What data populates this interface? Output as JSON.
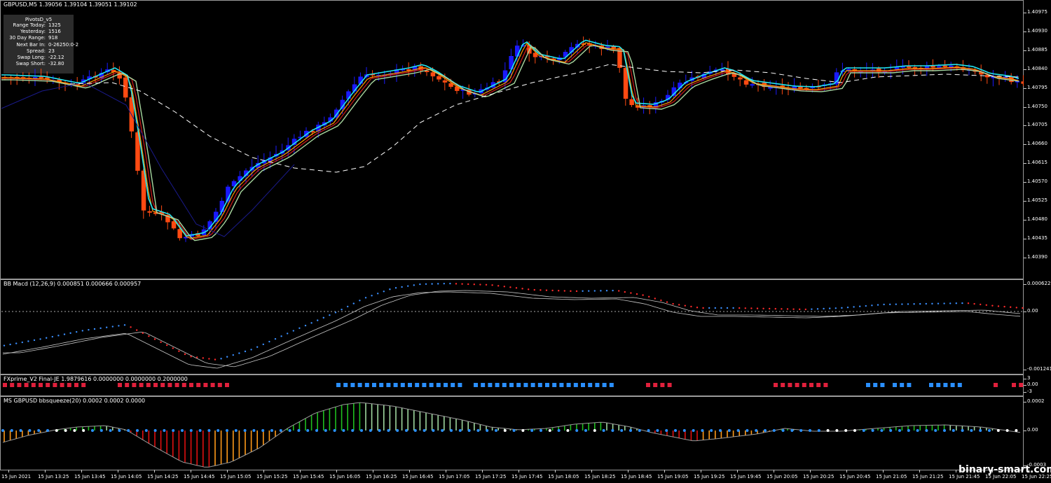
{
  "main_chart": {
    "title": "GBPUSD,M5  1.39056 1.39104 1.39051 1.39102",
    "price_ticks": [
      "1.40975",
      "1.40930",
      "1.40885",
      "1.40840",
      "1.40795",
      "1.40750",
      "1.40705",
      "1.40660",
      "1.40615",
      "1.40570",
      "1.40525",
      "1.40480",
      "1.40435",
      "1.40390"
    ]
  },
  "pivots_panel": {
    "title": "PivotsD_v5",
    "rows": [
      {
        "label": "Range  Today:",
        "value": "1325"
      },
      {
        "label": "Yesterday:",
        "value": "1516"
      },
      {
        "label": "30 Day Range:",
        "value": "918"
      },
      {
        "label": "Next Bar In:",
        "value": "0-26250:0-2"
      },
      {
        "label": "Spread:",
        "value": "23"
      },
      {
        "label": "Swap  Long:",
        "value": "-22.12"
      },
      {
        "label": "Swap  Short:",
        "value": "-32.80"
      }
    ]
  },
  "macd_pane": {
    "title": "BB Macd (12,26,9) 0.000851 0.000666 0.000957",
    "ticks": [
      "0.000622",
      "0.00",
      "-0.001241"
    ]
  },
  "fxprime_pane": {
    "title": "FXprime_V2 Final-JE 1.9879616 0.0000000 0.0000000 0.2000000",
    "ticks": [
      "3",
      "0.00",
      "-3"
    ]
  },
  "squeeze_pane": {
    "title": "MS GBPUSD bbsqueeze(20) 0.0002 0.0002 0.0000",
    "ticks": [
      "0.0002",
      "0.00",
      "-0.0003"
    ]
  },
  "time_axis": [
    "15 Jun 2021",
    "15 Jun 13:25",
    "15 Jun 13:45",
    "15 Jun 14:05",
    "15 Jun 14:25",
    "15 Jun 14:45",
    "15 Jun 15:05",
    "15 Jun 15:25",
    "15 Jun 15:45",
    "15 Jun 16:05",
    "15 Jun 16:25",
    "15 Jun 16:45",
    "15 Jun 17:05",
    "15 Jun 17:25",
    "15 Jun 17:45",
    "15 Jun 18:05",
    "15 Jun 18:25",
    "15 Jun 18:45",
    "15 Jun 19:05",
    "15 Jun 19:25",
    "15 Jun 19:45",
    "15 Jun 20:05",
    "15 Jun 20:25",
    "15 Jun 20:45",
    "15 Jun 21:05",
    "15 Jun 21:25",
    "15 Jun 21:45",
    "15 Jun 22:05",
    "15 Jun 22:25"
  ],
  "watermark": "binary-smart.com",
  "colors": {
    "bull_candle": "#1a1aff",
    "bear_candle": "#ff4a12",
    "ma_cyan": "#22e6f0",
    "ma_sage": "#a8d8a0",
    "ma_red": "#d01a1a",
    "ma_orange": "#ff9900",
    "ma_navy": "#1a1a8a",
    "dash_line": "#ffffff",
    "macd_blue": "#3a8fff",
    "macd_red": "#ff2a2a",
    "fx_blue": "#2a8fff",
    "fx_red": "#e0203c",
    "sq_green": "#1fbf1f",
    "sq_orange": "#ff9a1a",
    "sq_red": "#e01010",
    "sq_dot_blue": "#2a8fff"
  }
}
